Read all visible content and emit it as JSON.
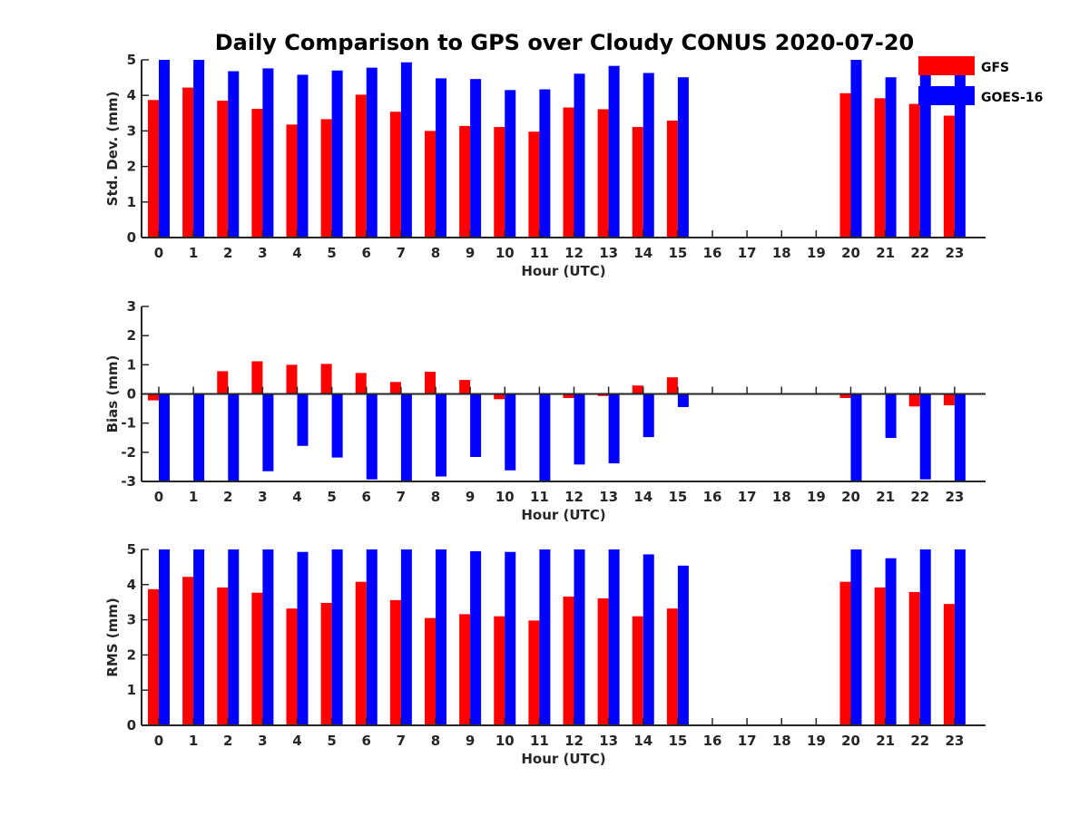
{
  "title": "Daily Comparison to GPS over Cloudy CONUS 2020-07-20",
  "colors": {
    "GFS": "#ff0000",
    "GOES-16": "#0000ff"
  },
  "legend": {
    "placement": "top-right",
    "entries": [
      "GFS",
      "GOES-16"
    ]
  },
  "chart_data": [
    {
      "type": "bar",
      "xlabel": "Hour (UTC)",
      "ylabel": "Std. Dev. (mm)",
      "ylim": [
        0,
        5
      ],
      "yticks": [
        "0",
        "1",
        "2",
        "3",
        "4",
        "5"
      ],
      "categories": [
        "0",
        "1",
        "2",
        "3",
        "4",
        "5",
        "6",
        "7",
        "8",
        "9",
        "10",
        "11",
        "12",
        "13",
        "14",
        "15",
        "16",
        "17",
        "18",
        "19",
        "20",
        "21",
        "22",
        "23"
      ],
      "series": [
        {
          "name": "GFS",
          "values": [
            3.87,
            4.22,
            3.85,
            3.62,
            3.18,
            3.33,
            4.02,
            3.54,
            3.0,
            3.14,
            3.11,
            2.98,
            3.66,
            3.61,
            3.11,
            3.29,
            null,
            null,
            null,
            null,
            4.06,
            3.92,
            3.76,
            3.43
          ]
        },
        {
          "name": "GOES-16",
          "values": [
            5.0,
            5.0,
            4.68,
            4.76,
            4.58,
            4.7,
            4.78,
            4.93,
            4.48,
            4.46,
            4.15,
            4.17,
            4.61,
            4.83,
            4.63,
            4.51,
            null,
            null,
            null,
            null,
            5.0,
            4.51,
            4.77,
            4.7
          ]
        }
      ]
    },
    {
      "type": "bar",
      "xlabel": "Hour (UTC)",
      "ylabel": "Bias (mm)",
      "ylim": [
        -3,
        3
      ],
      "yticks": [
        "-3",
        "-2",
        "-1",
        "0",
        "1",
        "2",
        "3"
      ],
      "categories": [
        "0",
        "1",
        "2",
        "3",
        "4",
        "5",
        "6",
        "7",
        "8",
        "9",
        "10",
        "11",
        "12",
        "13",
        "14",
        "15",
        "16",
        "17",
        "18",
        "19",
        "20",
        "21",
        "22",
        "23"
      ],
      "series": [
        {
          "name": "GFS",
          "values": [
            -0.22,
            -0.03,
            0.78,
            1.12,
            1.0,
            1.03,
            0.72,
            0.41,
            0.76,
            0.48,
            -0.18,
            0.02,
            -0.14,
            -0.07,
            0.29,
            0.57,
            null,
            null,
            null,
            null,
            -0.14,
            -0.02,
            -0.43,
            -0.39
          ]
        },
        {
          "name": "GOES-16",
          "values": [
            -3.0,
            -3.0,
            -3.0,
            -2.65,
            -1.78,
            -2.18,
            -2.93,
            -3.0,
            -2.83,
            -2.16,
            -2.62,
            -3.0,
            -2.42,
            -2.38,
            -1.48,
            -0.45,
            null,
            null,
            null,
            null,
            -3.0,
            -1.51,
            -2.93,
            -3.0
          ]
        }
      ]
    },
    {
      "type": "bar",
      "xlabel": "Hour (UTC)",
      "ylabel": "RMS (mm)",
      "ylim": [
        0,
        5
      ],
      "yticks": [
        "0",
        "1",
        "2",
        "3",
        "4",
        "5"
      ],
      "categories": [
        "0",
        "1",
        "2",
        "3",
        "4",
        "5",
        "6",
        "7",
        "8",
        "9",
        "10",
        "11",
        "12",
        "13",
        "14",
        "15",
        "16",
        "17",
        "18",
        "19",
        "20",
        "21",
        "22",
        "23"
      ],
      "series": [
        {
          "name": "GFS",
          "values": [
            3.87,
            4.22,
            3.92,
            3.77,
            3.32,
            3.48,
            4.08,
            3.56,
            3.05,
            3.16,
            3.1,
            2.98,
            3.66,
            3.61,
            3.1,
            3.32,
            null,
            null,
            null,
            null,
            4.08,
            3.92,
            3.79,
            3.45
          ]
        },
        {
          "name": "GOES-16",
          "values": [
            5.0,
            5.0,
            5.0,
            5.0,
            4.93,
            5.0,
            5.0,
            5.0,
            5.0,
            4.95,
            4.93,
            5.0,
            5.0,
            5.0,
            4.86,
            4.54,
            null,
            null,
            null,
            null,
            5.0,
            4.75,
            5.0,
            5.0
          ]
        }
      ]
    }
  ]
}
